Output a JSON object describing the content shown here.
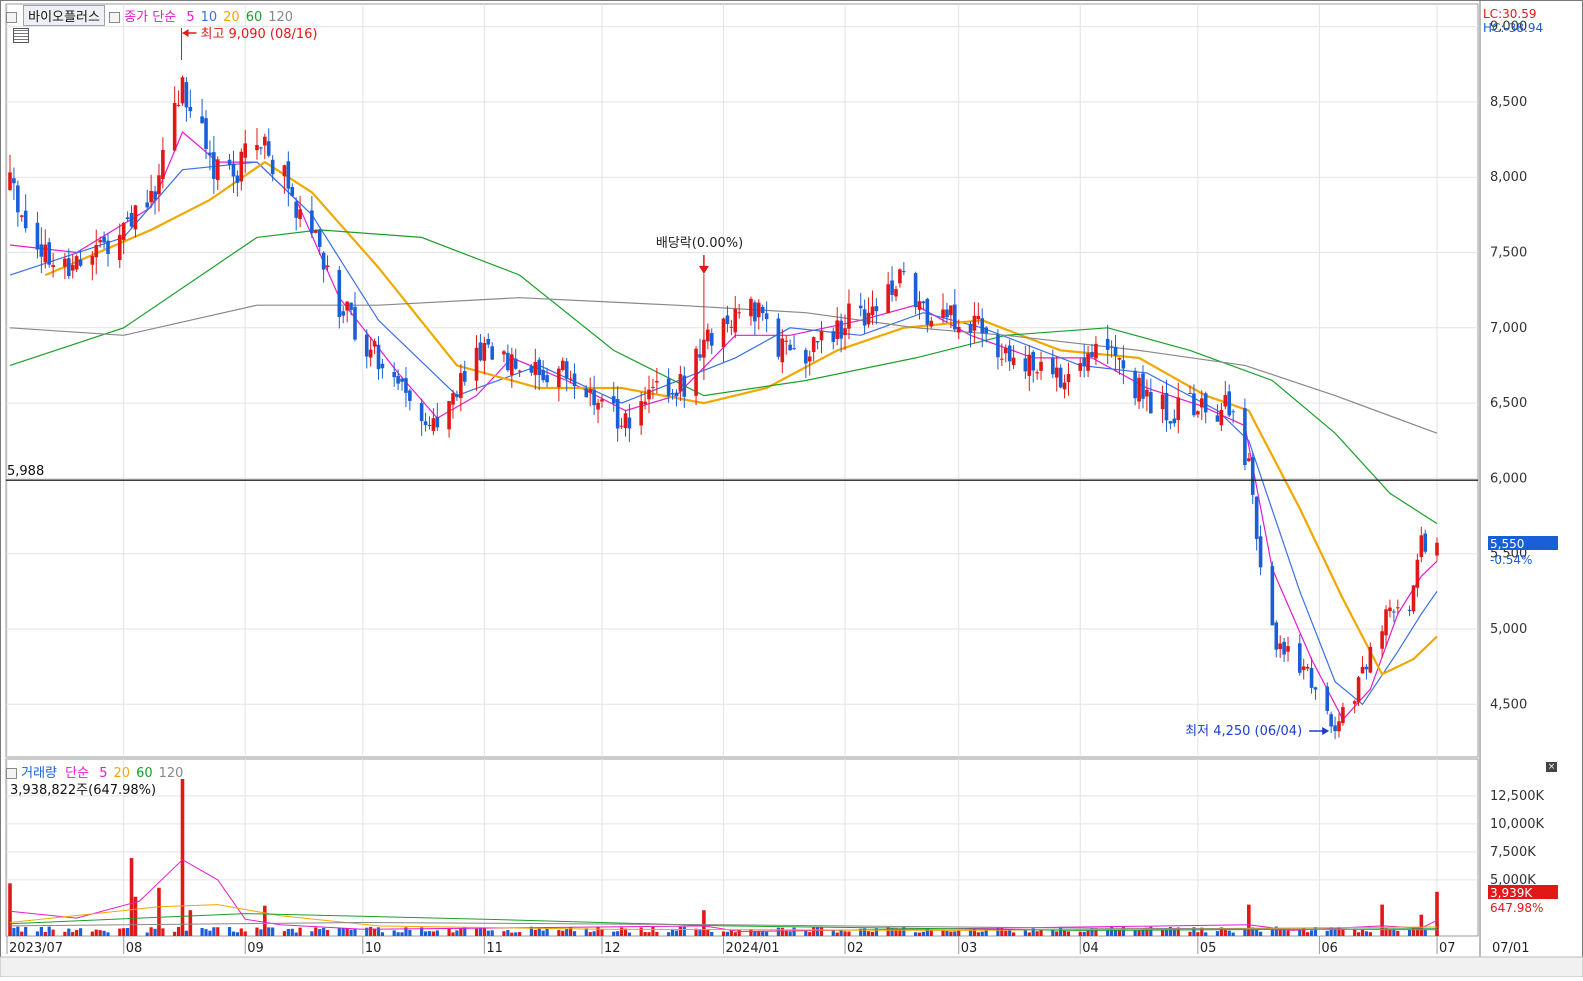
{
  "price_legend": {
    "symbol": "바이오플러스",
    "indicator": "종가 단순",
    "periods": [
      {
        "label": "5",
        "color": "#e41bd0"
      },
      {
        "label": "10",
        "color": "#3a6fe8"
      },
      {
        "label": "20",
        "color": "#f0a800"
      },
      {
        "label": "60",
        "color": "#1aa02a"
      },
      {
        "label": "120",
        "color": "#888888"
      }
    ]
  },
  "volume_legend": {
    "title": "거래량",
    "indicator": "단순",
    "periods": [
      {
        "label": "5",
        "color": "#e41bd0"
      },
      {
        "label": "20",
        "color": "#f0a800"
      },
      {
        "label": "60",
        "color": "#1aa02a"
      },
      {
        "label": "120",
        "color": "#888888"
      }
    ],
    "current_text": "3,938,822주(647.98%)"
  },
  "right_info": {
    "lc": "LC:30.59",
    "hc": "HC:-38.94"
  },
  "chart_data": [
    {
      "type": "candlestick",
      "title": "바이오플러스",
      "ylim": [
        4150,
        9150
      ],
      "y_ticks": [
        "9,000",
        "8,500",
        "8,000",
        "7,500",
        "7,000",
        "6,500",
        "6,000",
        "5,500",
        "5,000",
        "4,500"
      ],
      "y_tick_values": [
        9000,
        8500,
        8000,
        7500,
        7000,
        6500,
        6000,
        5500,
        5000,
        4500
      ],
      "x_ticks": [
        "2023/07",
        "08",
        "09",
        "10",
        "11",
        "12",
        "2024/01",
        "02",
        "03",
        "04",
        "05",
        "06",
        "07",
        "07/01"
      ],
      "x_tick_dates": [
        "2023-07-01",
        "2023-08-01",
        "2023-09-01",
        "2023-10-01",
        "2023-11-01",
        "2023-12-01",
        "2024-01-01",
        "2024-02-01",
        "2024-03-01",
        "2024-04-01",
        "2024-05-01",
        "2024-06-01",
        "2024-07-01",
        null
      ],
      "price_path": [
        [
          "2023-07-03",
          7950
        ],
        [
          "2023-07-13",
          7400
        ],
        [
          "2023-07-24",
          7500
        ],
        [
          "2023-08-01",
          7650
        ],
        [
          "2023-08-09",
          7900
        ],
        [
          "2023-08-16",
          8650
        ],
        [
          "2023-08-22",
          8150
        ],
        [
          "2023-08-29",
          8000
        ],
        [
          "2023-09-05",
          8250
        ],
        [
          "2023-09-12",
          7950
        ],
        [
          "2023-09-19",
          7600
        ],
        [
          "2023-09-26",
          7100
        ],
        [
          "2023-10-05",
          6800
        ],
        [
          "2023-10-12",
          6600
        ],
        [
          "2023-10-19",
          6350
        ],
        [
          "2023-10-26",
          6600
        ],
        [
          "2023-11-02",
          6900
        ],
        [
          "2023-11-09",
          6750
        ],
        [
          "2023-11-16",
          6650
        ],
        [
          "2023-11-23",
          6700
        ],
        [
          "2023-11-30",
          6500
        ],
        [
          "2023-12-07",
          6350
        ],
        [
          "2023-12-14",
          6550
        ],
        [
          "2023-12-21",
          6600
        ],
        [
          "2023-12-28",
          6900
        ],
        [
          "2024-01-04",
          7150
        ],
        [
          "2024-01-11",
          7050
        ],
        [
          "2024-01-18",
          6800
        ],
        [
          "2024-01-25",
          6900
        ],
        [
          "2024-02-01",
          7050
        ],
        [
          "2024-02-08",
          7150
        ],
        [
          "2024-02-15",
          7300
        ],
        [
          "2024-02-22",
          7050
        ],
        [
          "2024-02-29",
          7050
        ],
        [
          "2024-03-07",
          7050
        ],
        [
          "2024-03-14",
          6800
        ],
        [
          "2024-03-21",
          6700
        ],
        [
          "2024-03-28",
          6700
        ],
        [
          "2024-04-04",
          6900
        ],
        [
          "2024-04-11",
          6800
        ],
        [
          "2024-04-18",
          6500
        ],
        [
          "2024-04-25",
          6450
        ],
        [
          "2024-05-02",
          6500
        ],
        [
          "2024-05-09",
          6450
        ],
        [
          "2024-05-14",
          6050
        ],
        [
          "2024-05-17",
          5400
        ],
        [
          "2024-05-21",
          4900
        ],
        [
          "2024-05-28",
          4750
        ],
        [
          "2024-06-04",
          4350
        ],
        [
          "2024-06-10",
          4550
        ],
        [
          "2024-06-14",
          4850
        ],
        [
          "2024-06-19",
          5150
        ],
        [
          "2024-06-24",
          5050
        ],
        [
          "2024-06-27",
          5600
        ],
        [
          "2024-07-01",
          5550
        ]
      ],
      "series": [
        {
          "name": "5",
          "color": "#e41bd0",
          "values": [
            [
              "2023-07-03",
              7550
            ],
            [
              "2023-07-20",
              7500
            ],
            [
              "2023-08-08",
              7800
            ],
            [
              "2023-08-16",
              8300
            ],
            [
              "2023-08-25",
              8100
            ],
            [
              "2023-09-04",
              8100
            ],
            [
              "2023-09-14",
              7850
            ],
            [
              "2023-09-25",
              7200
            ],
            [
              "2023-10-10",
              6700
            ],
            [
              "2023-10-20",
              6400
            ],
            [
              "2023-10-30",
              6550
            ],
            [
              "2023-11-08",
              6800
            ],
            [
              "2023-11-22",
              6650
            ],
            [
              "2023-12-07",
              6450
            ],
            [
              "2023-12-20",
              6550
            ],
            [
              "2024-01-04",
              6950
            ],
            [
              "2024-01-18",
              6950
            ],
            [
              "2024-02-05",
              7050
            ],
            [
              "2024-02-19",
              7150
            ],
            [
              "2024-03-04",
              6950
            ],
            [
              "2024-03-20",
              6800
            ],
            [
              "2024-04-04",
              6800
            ],
            [
              "2024-04-18",
              6600
            ],
            [
              "2024-05-02",
              6480
            ],
            [
              "2024-05-13",
              6350
            ],
            [
              "2024-05-20",
              5400
            ],
            [
              "2024-05-30",
              4800
            ],
            [
              "2024-06-07",
              4400
            ],
            [
              "2024-06-14",
              4600
            ],
            [
              "2024-06-21",
              5100
            ],
            [
              "2024-06-27",
              5350
            ],
            [
              "2024-07-01",
              5450
            ]
          ]
        },
        {
          "name": "10",
          "color": "#3a6fe8",
          "values": [
            [
              "2023-07-03",
              7350
            ],
            [
              "2023-08-01",
              7600
            ],
            [
              "2023-08-16",
              8050
            ],
            [
              "2023-09-04",
              8100
            ],
            [
              "2023-09-18",
              7750
            ],
            [
              "2023-10-05",
              7050
            ],
            [
              "2023-10-25",
              6550
            ],
            [
              "2023-11-15",
              6750
            ],
            [
              "2023-12-06",
              6500
            ],
            [
              "2024-01-04",
              6800
            ],
            [
              "2024-01-18",
              7000
            ],
            [
              "2024-02-05",
              6950
            ],
            [
              "2024-02-21",
              7100
            ],
            [
              "2024-03-07",
              7000
            ],
            [
              "2024-04-01",
              6750
            ],
            [
              "2024-04-18",
              6700
            ],
            [
              "2024-05-06",
              6450
            ],
            [
              "2024-05-14",
              6250
            ],
            [
              "2024-05-27",
              5250
            ],
            [
              "2024-06-05",
              4650
            ],
            [
              "2024-06-12",
              4500
            ],
            [
              "2024-06-21",
              4850
            ],
            [
              "2024-06-27",
              5100
            ],
            [
              "2024-07-01",
              5250
            ]
          ]
        },
        {
          "name": "20",
          "color": "#f0a800",
          "values": [
            [
              "2023-07-12",
              7350
            ],
            [
              "2023-08-08",
              7650
            ],
            [
              "2023-08-23",
              7850
            ],
            [
              "2023-09-06",
              8100
            ],
            [
              "2023-09-18",
              7900
            ],
            [
              "2023-10-05",
              7400
            ],
            [
              "2023-10-25",
              6750
            ],
            [
              "2023-11-15",
              6600
            ],
            [
              "2023-12-06",
              6600
            ],
            [
              "2023-12-27",
              6500
            ],
            [
              "2024-01-12",
              6600
            ],
            [
              "2024-01-30",
              6850
            ],
            [
              "2024-02-16",
              7000
            ],
            [
              "2024-03-07",
              7050
            ],
            [
              "2024-03-27",
              6850
            ],
            [
              "2024-04-16",
              6800
            ],
            [
              "2024-05-03",
              6550
            ],
            [
              "2024-05-14",
              6450
            ],
            [
              "2024-05-27",
              5800
            ],
            [
              "2024-06-07",
              5200
            ],
            [
              "2024-06-17",
              4700
            ],
            [
              "2024-06-25",
              4800
            ],
            [
              "2024-07-01",
              4950
            ]
          ]
        },
        {
          "name": "60",
          "color": "#1aa02a",
          "values": [
            [
              "2023-07-03",
              6750
            ],
            [
              "2023-08-01",
              7000
            ],
            [
              "2023-09-04",
              7600
            ],
            [
              "2023-09-20",
              7650
            ],
            [
              "2023-10-16",
              7600
            ],
            [
              "2023-11-10",
              7350
            ],
            [
              "2023-12-04",
              6850
            ],
            [
              "2023-12-27",
              6550
            ],
            [
              "2024-01-22",
              6650
            ],
            [
              "2024-02-19",
              6800
            ],
            [
              "2024-03-13",
              6950
            ],
            [
              "2024-04-08",
              7000
            ],
            [
              "2024-04-29",
              6850
            ],
            [
              "2024-05-20",
              6650
            ],
            [
              "2024-06-05",
              6300
            ],
            [
              "2024-06-19",
              5900
            ],
            [
              "2024-07-01",
              5700
            ]
          ]
        },
        {
          "name": "120",
          "color": "#888888",
          "values": [
            [
              "2023-07-03",
              7000
            ],
            [
              "2023-08-01",
              6950
            ],
            [
              "2023-09-04",
              7150
            ],
            [
              "2023-10-05",
              7150
            ],
            [
              "2023-11-10",
              7200
            ],
            [
              "2023-12-20",
              7150
            ],
            [
              "2024-01-22",
              7100
            ],
            [
              "2024-02-19",
              7000
            ],
            [
              "2024-03-13",
              6950
            ],
            [
              "2024-04-16",
              6850
            ],
            [
              "2024-05-13",
              6750
            ],
            [
              "2024-06-05",
              6550
            ],
            [
              "2024-07-01",
              6300
            ]
          ]
        }
      ],
      "reference_line": {
        "value": 5988,
        "label": "5,988"
      },
      "annotations": [
        {
          "text": "최고 9,090 (08/16)",
          "date": "2023-08-16",
          "value": 9090
        },
        {
          "text": "배당락(0.00%)",
          "date": "2023-12-27",
          "value": 7400
        },
        {
          "text": "최저 4,250 (06/04)",
          "date": "2024-06-04",
          "value": 4250
        }
      ],
      "last_price": {
        "value": 5550,
        "label": "5,550",
        "change": "-0.54%"
      }
    },
    {
      "type": "bar",
      "title": "거래량",
      "ylim": [
        0,
        14000
      ],
      "y_ticks": [
        "12,500K",
        "10,000K",
        "7,500K",
        "5,000K"
      ],
      "y_tick_values": [
        12500,
        10000,
        7500,
        5000
      ],
      "volume_spikes_k": [
        [
          "2023-07-03",
          4700
        ],
        [
          "2023-08-03",
          6950
        ],
        [
          "2023-08-04",
          3500
        ],
        [
          "2023-08-10",
          4300
        ],
        [
          "2023-08-16",
          14000
        ],
        [
          "2023-08-18",
          2300
        ],
        [
          "2023-09-06",
          2700
        ],
        [
          "2023-12-27",
          2300
        ],
        [
          "2024-05-14",
          2800
        ],
        [
          "2024-06-17",
          2800
        ],
        [
          "2024-06-27",
          1900
        ],
        [
          "2024-07-01",
          3939
        ]
      ],
      "baseline_volume_k": 600,
      "series": [
        {
          "name": "5",
          "color": "#e41bd0",
          "values": [
            [
              "2023-07-03",
              2200
            ],
            [
              "2023-07-20",
              1600
            ],
            [
              "2023-08-05",
              3100
            ],
            [
              "2023-08-16",
              6800
            ],
            [
              "2023-08-25",
              5000
            ],
            [
              "2023-09-01",
              1500
            ],
            [
              "2023-09-10",
              1000
            ],
            [
              "2023-10-01",
              600
            ],
            [
              "2023-12-27",
              900
            ],
            [
              "2024-01-05",
              400
            ],
            [
              "2024-05-14",
              1000
            ],
            [
              "2024-05-25",
              500
            ],
            [
              "2024-06-17",
              900
            ],
            [
              "2024-06-27",
              700
            ],
            [
              "2024-07-01",
              1400
            ]
          ]
        },
        {
          "name": "20",
          "color": "#f0a800",
          "values": [
            [
              "2023-07-03",
              1200
            ],
            [
              "2023-08-10",
              2600
            ],
            [
              "2023-08-25",
              2800
            ],
            [
              "2023-09-10",
              1800
            ],
            [
              "2023-10-05",
              900
            ],
            [
              "2023-12-01",
              600
            ],
            [
              "2024-03-01",
              500
            ],
            [
              "2024-07-01",
              800
            ]
          ]
        },
        {
          "name": "60",
          "color": "#1aa02a",
          "values": [
            [
              "2023-07-03",
              1100
            ],
            [
              "2023-09-01",
              2000
            ],
            [
              "2023-11-01",
              1500
            ],
            [
              "2024-01-01",
              900
            ],
            [
              "2024-04-01",
              500
            ],
            [
              "2024-07-01",
              650
            ]
          ]
        },
        {
          "name": "120",
          "color": "#888888",
          "values": [
            [
              "2023-07-03",
              900
            ],
            [
              "2023-10-01",
              1200
            ],
            [
              "2024-01-01",
              1000
            ],
            [
              "2024-04-01",
              700
            ],
            [
              "2024-07-01",
              550
            ]
          ]
        }
      ],
      "last_volume": {
        "label": "3,939K",
        "ratio": "647.98%"
      }
    }
  ]
}
